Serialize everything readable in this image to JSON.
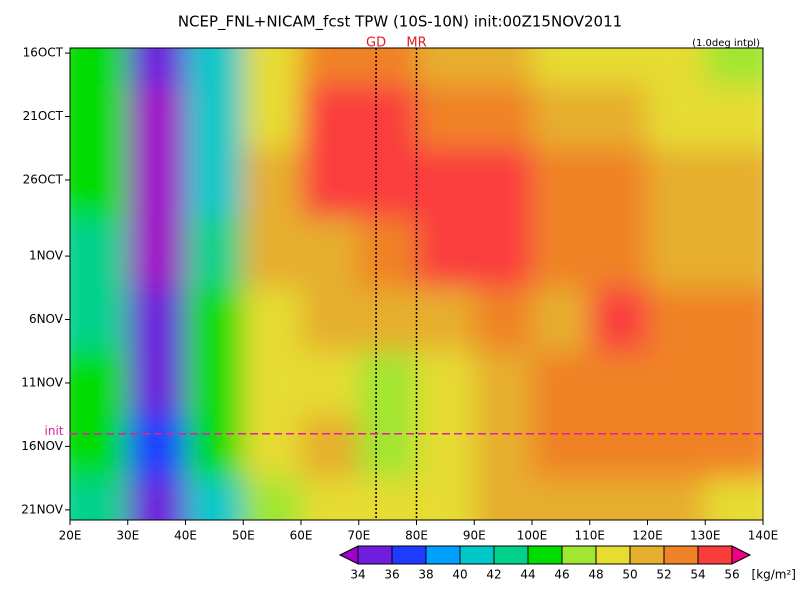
{
  "chart_data": {
    "type": "heatmap",
    "title": "NCEP_FNL+NICAM_fcst TPW (10S-10N) init:00Z15NOV2011",
    "note": "(1.0deg intpl)",
    "x": [
      25,
      35,
      45,
      55,
      65,
      75,
      85,
      95,
      105,
      115,
      125,
      135
    ],
    "y": [
      0,
      5,
      10,
      16,
      21,
      26,
      31,
      36
    ],
    "values": [
      [
        44,
        34,
        40,
        48,
        53,
        52,
        51,
        50,
        49,
        48,
        48,
        47
      ],
      [
        44,
        33,
        40,
        49,
        55,
        54,
        53,
        52,
        51,
        50,
        49,
        48
      ],
      [
        44,
        33,
        41,
        50,
        54,
        55,
        55,
        54,
        53,
        52,
        51,
        50
      ],
      [
        42,
        33,
        42,
        50,
        51,
        52,
        54,
        55,
        53,
        52,
        51,
        50
      ],
      [
        42,
        34,
        44,
        48,
        51,
        50,
        51,
        52,
        51,
        55,
        53,
        52
      ],
      [
        44,
        35,
        44,
        48,
        48,
        46,
        48,
        50,
        52,
        53,
        53,
        52
      ],
      [
        45,
        36,
        44,
        49,
        50,
        47,
        49,
        50,
        53,
        53,
        53,
        52
      ],
      [
        42,
        34,
        40,
        46,
        48,
        48,
        49,
        50,
        51,
        51,
        50,
        49
      ]
    ],
    "xlim": [
      20,
      140
    ],
    "xticks": [
      {
        "value": 20,
        "label": "20E"
      },
      {
        "value": 30,
        "label": "30E"
      },
      {
        "value": 40,
        "label": "40E"
      },
      {
        "value": 50,
        "label": "50E"
      },
      {
        "value": 60,
        "label": "60E"
      },
      {
        "value": 70,
        "label": "70E"
      },
      {
        "value": 80,
        "label": "80E"
      },
      {
        "value": 90,
        "label": "90E"
      },
      {
        "value": 100,
        "label": "100E"
      },
      {
        "value": 110,
        "label": "110E"
      },
      {
        "value": 120,
        "label": "120E"
      },
      {
        "value": 130,
        "label": "130E"
      },
      {
        "value": 140,
        "label": "140E"
      }
    ],
    "ylim": [
      -0.4,
      36.8
    ],
    "yticks": [
      {
        "value": 0,
        "label": "16OCT"
      },
      {
        "value": 5,
        "label": "21OCT"
      },
      {
        "value": 10,
        "label": "26OCT"
      },
      {
        "value": 16,
        "label": "1NOV"
      },
      {
        "value": 21,
        "label": "6NOV"
      },
      {
        "value": 26,
        "label": "11NOV"
      },
      {
        "value": 31,
        "label": "16NOV"
      },
      {
        "value": 36,
        "label": "21NOV"
      }
    ],
    "vlines": [
      {
        "x": 73,
        "label": "GD"
      },
      {
        "x": 80,
        "label": "MR"
      }
    ],
    "hline": {
      "y": 30,
      "label": "init",
      "color": "#e0209a"
    },
    "colorbar": {
      "levels": [
        34,
        36,
        38,
        40,
        42,
        44,
        46,
        48,
        50,
        52,
        54,
        56
      ],
      "colors": [
        "#a000c8",
        "#6e1edc",
        "#1e3cff",
        "#00a0ff",
        "#00c8c8",
        "#00d28c",
        "#00dc00",
        "#a0e632",
        "#e6dc32",
        "#e6af2d",
        "#f08228",
        "#fa3c3c",
        "#f00082"
      ],
      "unit": "[kg/m²]"
    }
  }
}
